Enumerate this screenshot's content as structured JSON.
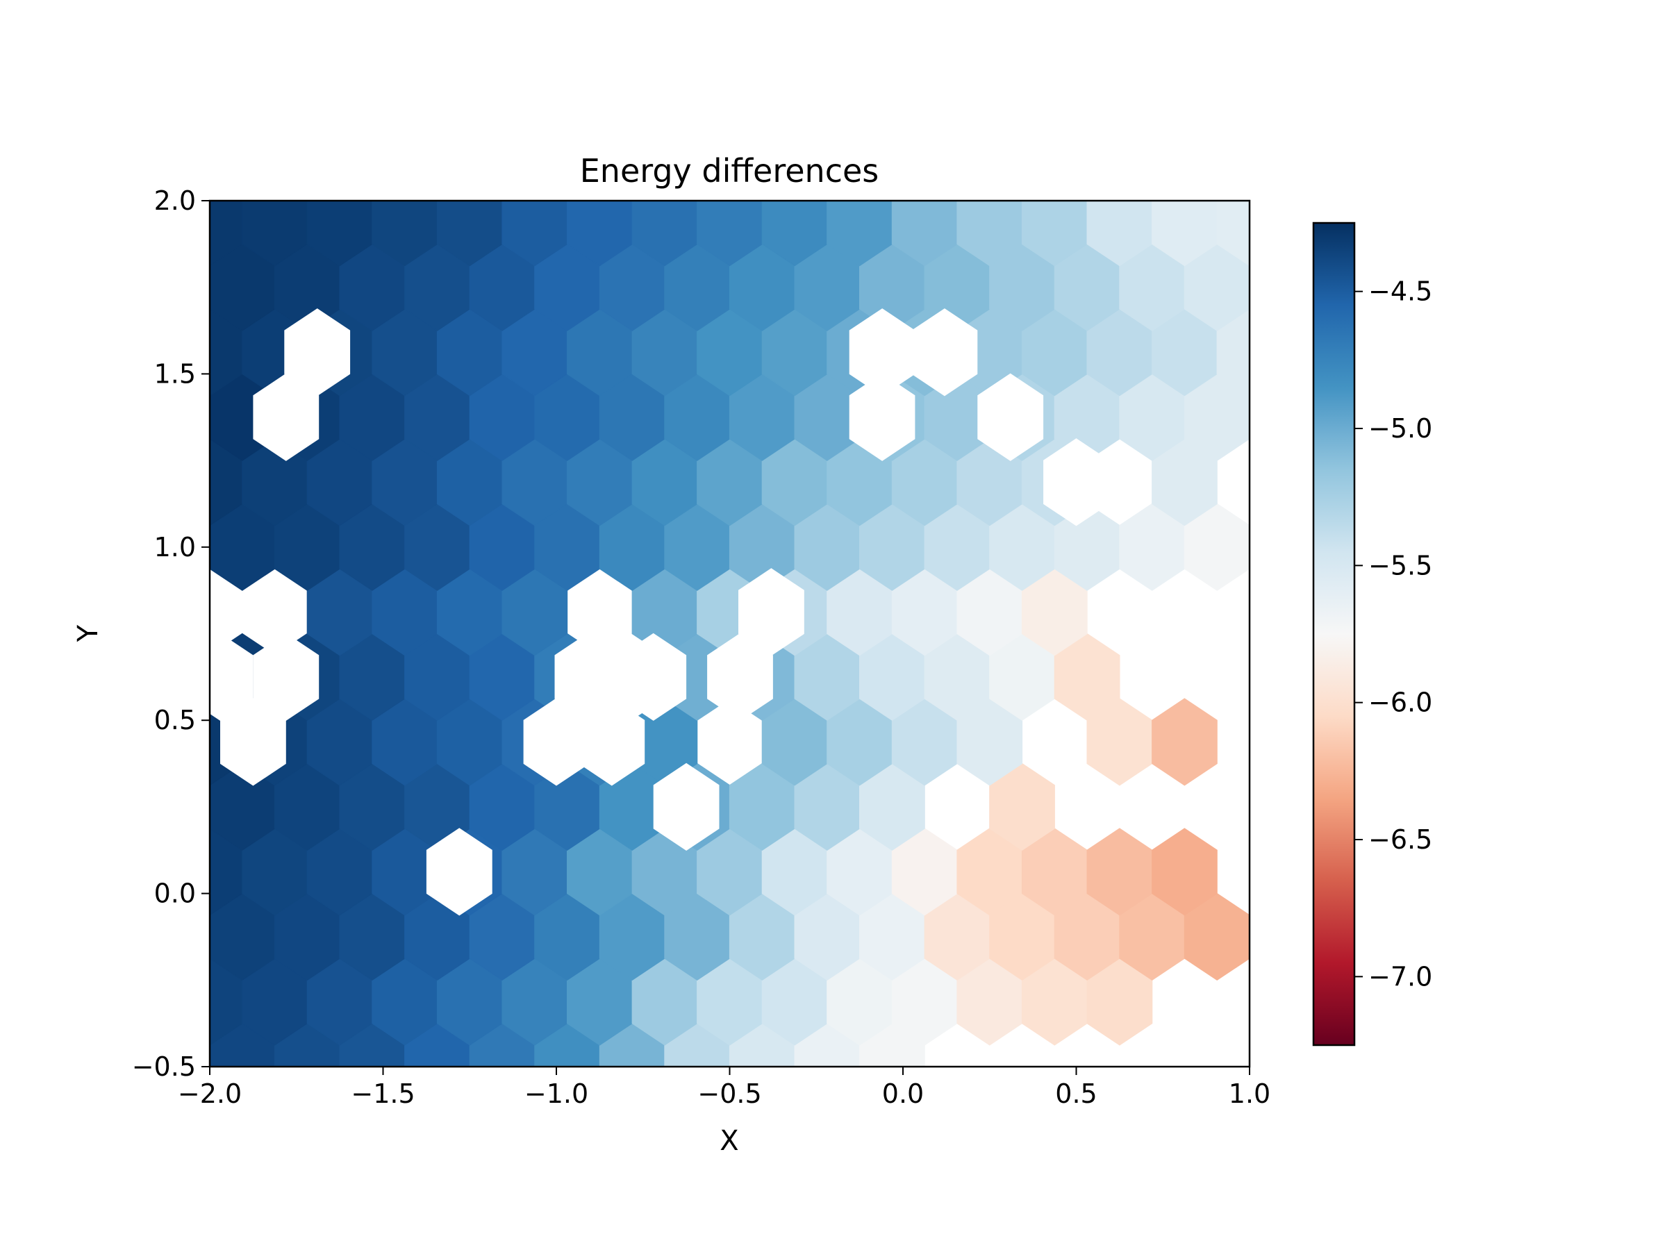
{
  "chart_data": {
    "type": "heatmap",
    "subtype": "hexbin",
    "title": "Energy differences",
    "xlabel": "X",
    "ylabel": "Y",
    "xlim": [
      -2.0,
      1.0
    ],
    "ylim": [
      -0.5,
      2.0
    ],
    "xticks": [
      "−2.0",
      "−1.5",
      "−1.0",
      "−0.5",
      "0.0",
      "0.5",
      "1.0"
    ],
    "yticks": [
      "−0.5",
      "0.0",
      "0.5",
      "1.0",
      "1.5",
      "2.0"
    ],
    "grid": false,
    "colormap": "RdBu",
    "colorbar": {
      "range": [
        -7.25,
        -4.25
      ],
      "ticks": [
        "−4.5",
        "−5.0",
        "−5.5",
        "−6.0",
        "−6.5",
        "−7.0"
      ],
      "tick_values": [
        -4.5,
        -5.0,
        -5.5,
        -6.0,
        -6.5,
        -7.0
      ]
    },
    "hex_spacing_x": 0.1875,
    "hex_spacing_y": 0.1875,
    "row_y": [
      -0.5,
      -0.3125,
      -0.125,
      0.0625,
      0.25,
      0.4375,
      0.625,
      0.8125,
      1.0,
      1.1875,
      1.375,
      1.5625,
      1.75,
      1.9375
    ],
    "row_x_start": [
      -1.90625,
      -2.0,
      -1.90625,
      -2.0,
      -1.90625,
      -2.0,
      -1.90625,
      -2.0,
      -1.90625,
      -2.0,
      -1.90625,
      -2.0,
      -1.90625,
      -2.0
    ],
    "rows": [
      [
        -4.38,
        -4.42,
        -4.46,
        -4.55,
        -4.68,
        -4.82,
        -5.05,
        -5.35,
        -5.5,
        -5.65,
        -5.72,
        null,
        null,
        null,
        null,
        null
      ],
      [
        -4.36,
        -4.38,
        -4.44,
        -4.52,
        -4.62,
        -4.74,
        -4.9,
        -5.2,
        -5.38,
        -5.45,
        -5.68,
        -5.72,
        -5.9,
        -5.98,
        -6.02,
        null,
        null
      ],
      [
        -4.35,
        -4.38,
        -4.42,
        -4.5,
        -4.6,
        -4.72,
        -4.9,
        -5.05,
        -5.3,
        -5.52,
        -5.65,
        -5.95,
        -6.05,
        -6.12,
        -6.2,
        -6.28,
        null
      ],
      [
        -4.33,
        -4.37,
        -4.4,
        -4.48,
        -4.56,
        -4.68,
        -4.92,
        -5.05,
        -5.2,
        -5.45,
        -5.6,
        -5.8,
        -6.05,
        -6.12,
        -6.22,
        -6.3,
        null,
        null
      ],
      [
        -4.32,
        -4.36,
        -4.41,
        -4.46,
        -4.55,
        -4.62,
        -4.85,
        -5.0,
        -5.15,
        -5.3,
        -5.5,
        null,
        -6.02,
        null,
        null,
        null,
        null
      ],
      [
        -4.3,
        -4.35,
        -4.4,
        -4.48,
        -4.52,
        -4.6,
        -4.72,
        -4.85,
        null,
        -5.1,
        -5.25,
        -5.4,
        -5.55,
        null,
        -5.98,
        -6.22,
        null,
        null
      ],
      [
        -4.32,
        -4.37,
        -4.42,
        -4.5,
        -4.56,
        -4.7,
        null,
        -5.02,
        -5.08,
        -5.3,
        -5.45,
        -5.55,
        -5.68,
        -5.98,
        null,
        null,
        null
      ],
      [
        null,
        null,
        -4.45,
        -4.5,
        -4.58,
        -4.66,
        null,
        -5.0,
        -5.25,
        -5.35,
        -5.52,
        -5.6,
        -5.7,
        -5.85,
        null,
        null,
        null,
        null
      ],
      [
        -4.33,
        -4.35,
        -4.4,
        -4.45,
        -4.54,
        -4.62,
        -4.78,
        -4.9,
        -5.05,
        -5.2,
        -5.3,
        -5.4,
        -5.5,
        -5.55,
        -5.65,
        -5.72,
        null
      ],
      [
        -4.3,
        -4.34,
        -4.38,
        -4.44,
        -4.52,
        -4.62,
        -4.7,
        -4.82,
        -4.95,
        -5.1,
        -5.15,
        -5.25,
        -5.35,
        -5.4,
        null,
        -5.55,
        null,
        null
      ],
      [
        -4.28,
        -4.33,
        -4.38,
        -4.44,
        -4.54,
        -4.58,
        -4.66,
        -4.78,
        -4.9,
        -5.0,
        -5.15,
        -5.2,
        -5.3,
        -5.4,
        -5.5,
        -5.55,
        -5.65
      ],
      [
        -4.3,
        -4.33,
        -4.37,
        -4.42,
        -4.5,
        -4.56,
        -4.66,
        -4.75,
        -4.85,
        -4.92,
        -5.0,
        -5.1,
        -5.2,
        -5.25,
        -5.35,
        -5.4,
        -5.55,
        -5.6
      ],
      [
        -4.3,
        -4.32,
        -4.38,
        -4.42,
        -4.48,
        -4.56,
        -4.64,
        -4.72,
        -4.82,
        -4.9,
        -5.05,
        -5.1,
        -5.2,
        -5.3,
        -5.42,
        -5.5,
        -5.58
      ],
      [
        -4.3,
        -4.31,
        -4.33,
        -4.37,
        -4.41,
        -4.5,
        -4.56,
        -4.62,
        -4.7,
        -4.8,
        -4.9,
        -5.08,
        -5.2,
        -5.28,
        -5.45,
        -5.56,
        -5.58,
        -5.62
      ]
    ],
    "missing_cells": [
      {
        "x": -1.78,
        "y": 1.375
      },
      {
        "x": -1.69,
        "y": 1.5625
      },
      {
        "x": -1.97,
        "y": 0.625
      },
      {
        "x": -1.78,
        "y": 0.625
      },
      {
        "x": -1.875,
        "y": 0.4375
      },
      {
        "x": -1.28,
        "y": 0.0625
      },
      {
        "x": -0.91,
        "y": 0.625
      },
      {
        "x": -0.72,
        "y": 0.625
      },
      {
        "x": -1.0,
        "y": 0.4375
      },
      {
        "x": -0.84,
        "y": 0.4375
      },
      {
        "x": -0.625,
        "y": 0.25
      },
      {
        "x": -0.47,
        "y": 0.625
      },
      {
        "x": -0.38,
        "y": 0.8125
      },
      {
        "x": -0.06,
        "y": 1.375
      },
      {
        "x": -0.06,
        "y": 1.5625
      },
      {
        "x": 0.12,
        "y": 1.5625
      },
      {
        "x": 0.31,
        "y": 1.375
      },
      {
        "x": 0.5,
        "y": 1.1875
      }
    ]
  }
}
